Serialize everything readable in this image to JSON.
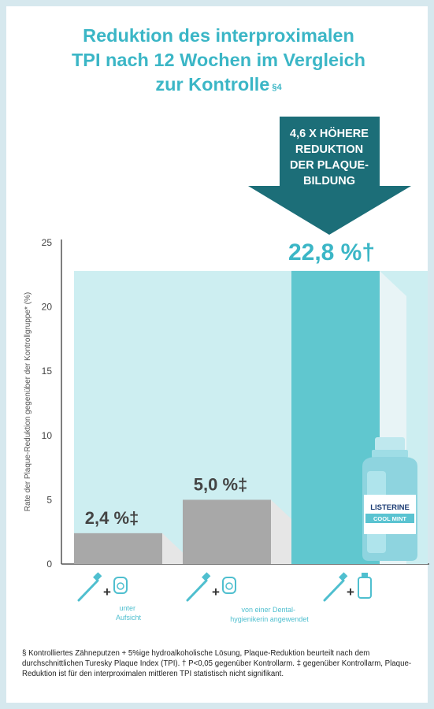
{
  "title": {
    "lines": [
      "Reduktion des interproximalen",
      "TPI nach 12 Wochen im Vergleich",
      "zur Kontrolle"
    ],
    "superscript": "§4"
  },
  "callout": {
    "lines": [
      "4,6 X HÖHERE",
      "REDUKTION",
      "DER PLAQUE-",
      "BILDUNG"
    ]
  },
  "chart_data": {
    "type": "bar",
    "title": "Reduktion des interproximalen TPI nach 12 Wochen im Vergleich zur Kontrolle §4",
    "ylabel": "Rate der Plaque-Reduktion  gegenüber der Kontrollgruppe* (%)",
    "ylim": [
      0,
      25
    ],
    "yticks": [
      0,
      5,
      10,
      15,
      20,
      25
    ],
    "grid": false,
    "categories": [
      "unter Aufsicht",
      "von einer Dental-hygienikerin angewendet",
      "Listerine Cool Mint"
    ],
    "values": [
      2.4,
      5.0,
      22.8
    ],
    "data_labels": [
      "2,4 %‡",
      "5,0 %‡",
      "22,8 %†"
    ],
    "colors": {
      "bar": "#a8a8a8",
      "highlight": "#60c7cf",
      "band": "#cdeef1",
      "accent": "#3bb6c6",
      "arrow": "#1c6e78"
    }
  },
  "xlabels": [
    {
      "lines": [
        "unter",
        "Aufsicht"
      ]
    },
    {
      "lines": [
        "von einer Dental-",
        "hygienikerin angewendet"
      ]
    },
    {
      "lines": []
    }
  ],
  "icons": {
    "toothbrush": "toothbrush-icon",
    "plus": "+",
    "floss": "floss-icon",
    "mouthwash": "mouthwash-bottle-icon"
  },
  "product": {
    "brand": "LISTERINE",
    "variant": "COOL MINT"
  },
  "footnote": "§ Kontrolliertes Zähneputzen + 5%ige hydroalkoholische Lösung, Plaque-Reduktion beurteilt nach dem durchschnittlichen Turesky Plaque Index (TPI). † P<0,05 gegenüber Kontrollarm. ‡ gegenüber Kontrollarm, Plaque-Reduktion ist für den interproximalen mittleren TPI statistisch nicht signifikant."
}
